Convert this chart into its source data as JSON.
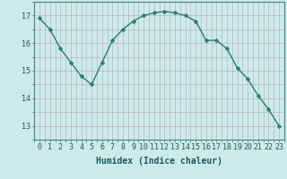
{
  "x": [
    0,
    1,
    2,
    3,
    4,
    5,
    6,
    7,
    8,
    9,
    10,
    11,
    12,
    13,
    14,
    15,
    16,
    17,
    18,
    19,
    20,
    21,
    22,
    23
  ],
  "y": [
    16.9,
    16.5,
    15.8,
    15.3,
    14.8,
    14.5,
    15.3,
    16.1,
    16.5,
    16.8,
    17.0,
    17.1,
    17.15,
    17.1,
    17.0,
    16.8,
    16.1,
    16.1,
    15.8,
    15.1,
    14.7,
    14.1,
    13.6,
    13.0
  ],
  "line_color": "#2d7d6e",
  "marker": "D",
  "marker_size": 2.5,
  "bg_color": "#cdeaea",
  "grid_color": "#b8a8a8",
  "xlabel": "Humidex (Indice chaleur)",
  "ylim": [
    12.5,
    17.5
  ],
  "xlim": [
    -0.5,
    23.5
  ],
  "yticks": [
    13,
    14,
    15,
    16,
    17
  ],
  "xtick_labels": [
    "0",
    "1",
    "2",
    "3",
    "4",
    "5",
    "6",
    "7",
    "8",
    "9",
    "10",
    "11",
    "12",
    "13",
    "14",
    "15",
    "16",
    "17",
    "18",
    "19",
    "20",
    "21",
    "22",
    "23"
  ],
  "label_fontsize": 7,
  "tick_fontsize": 6
}
